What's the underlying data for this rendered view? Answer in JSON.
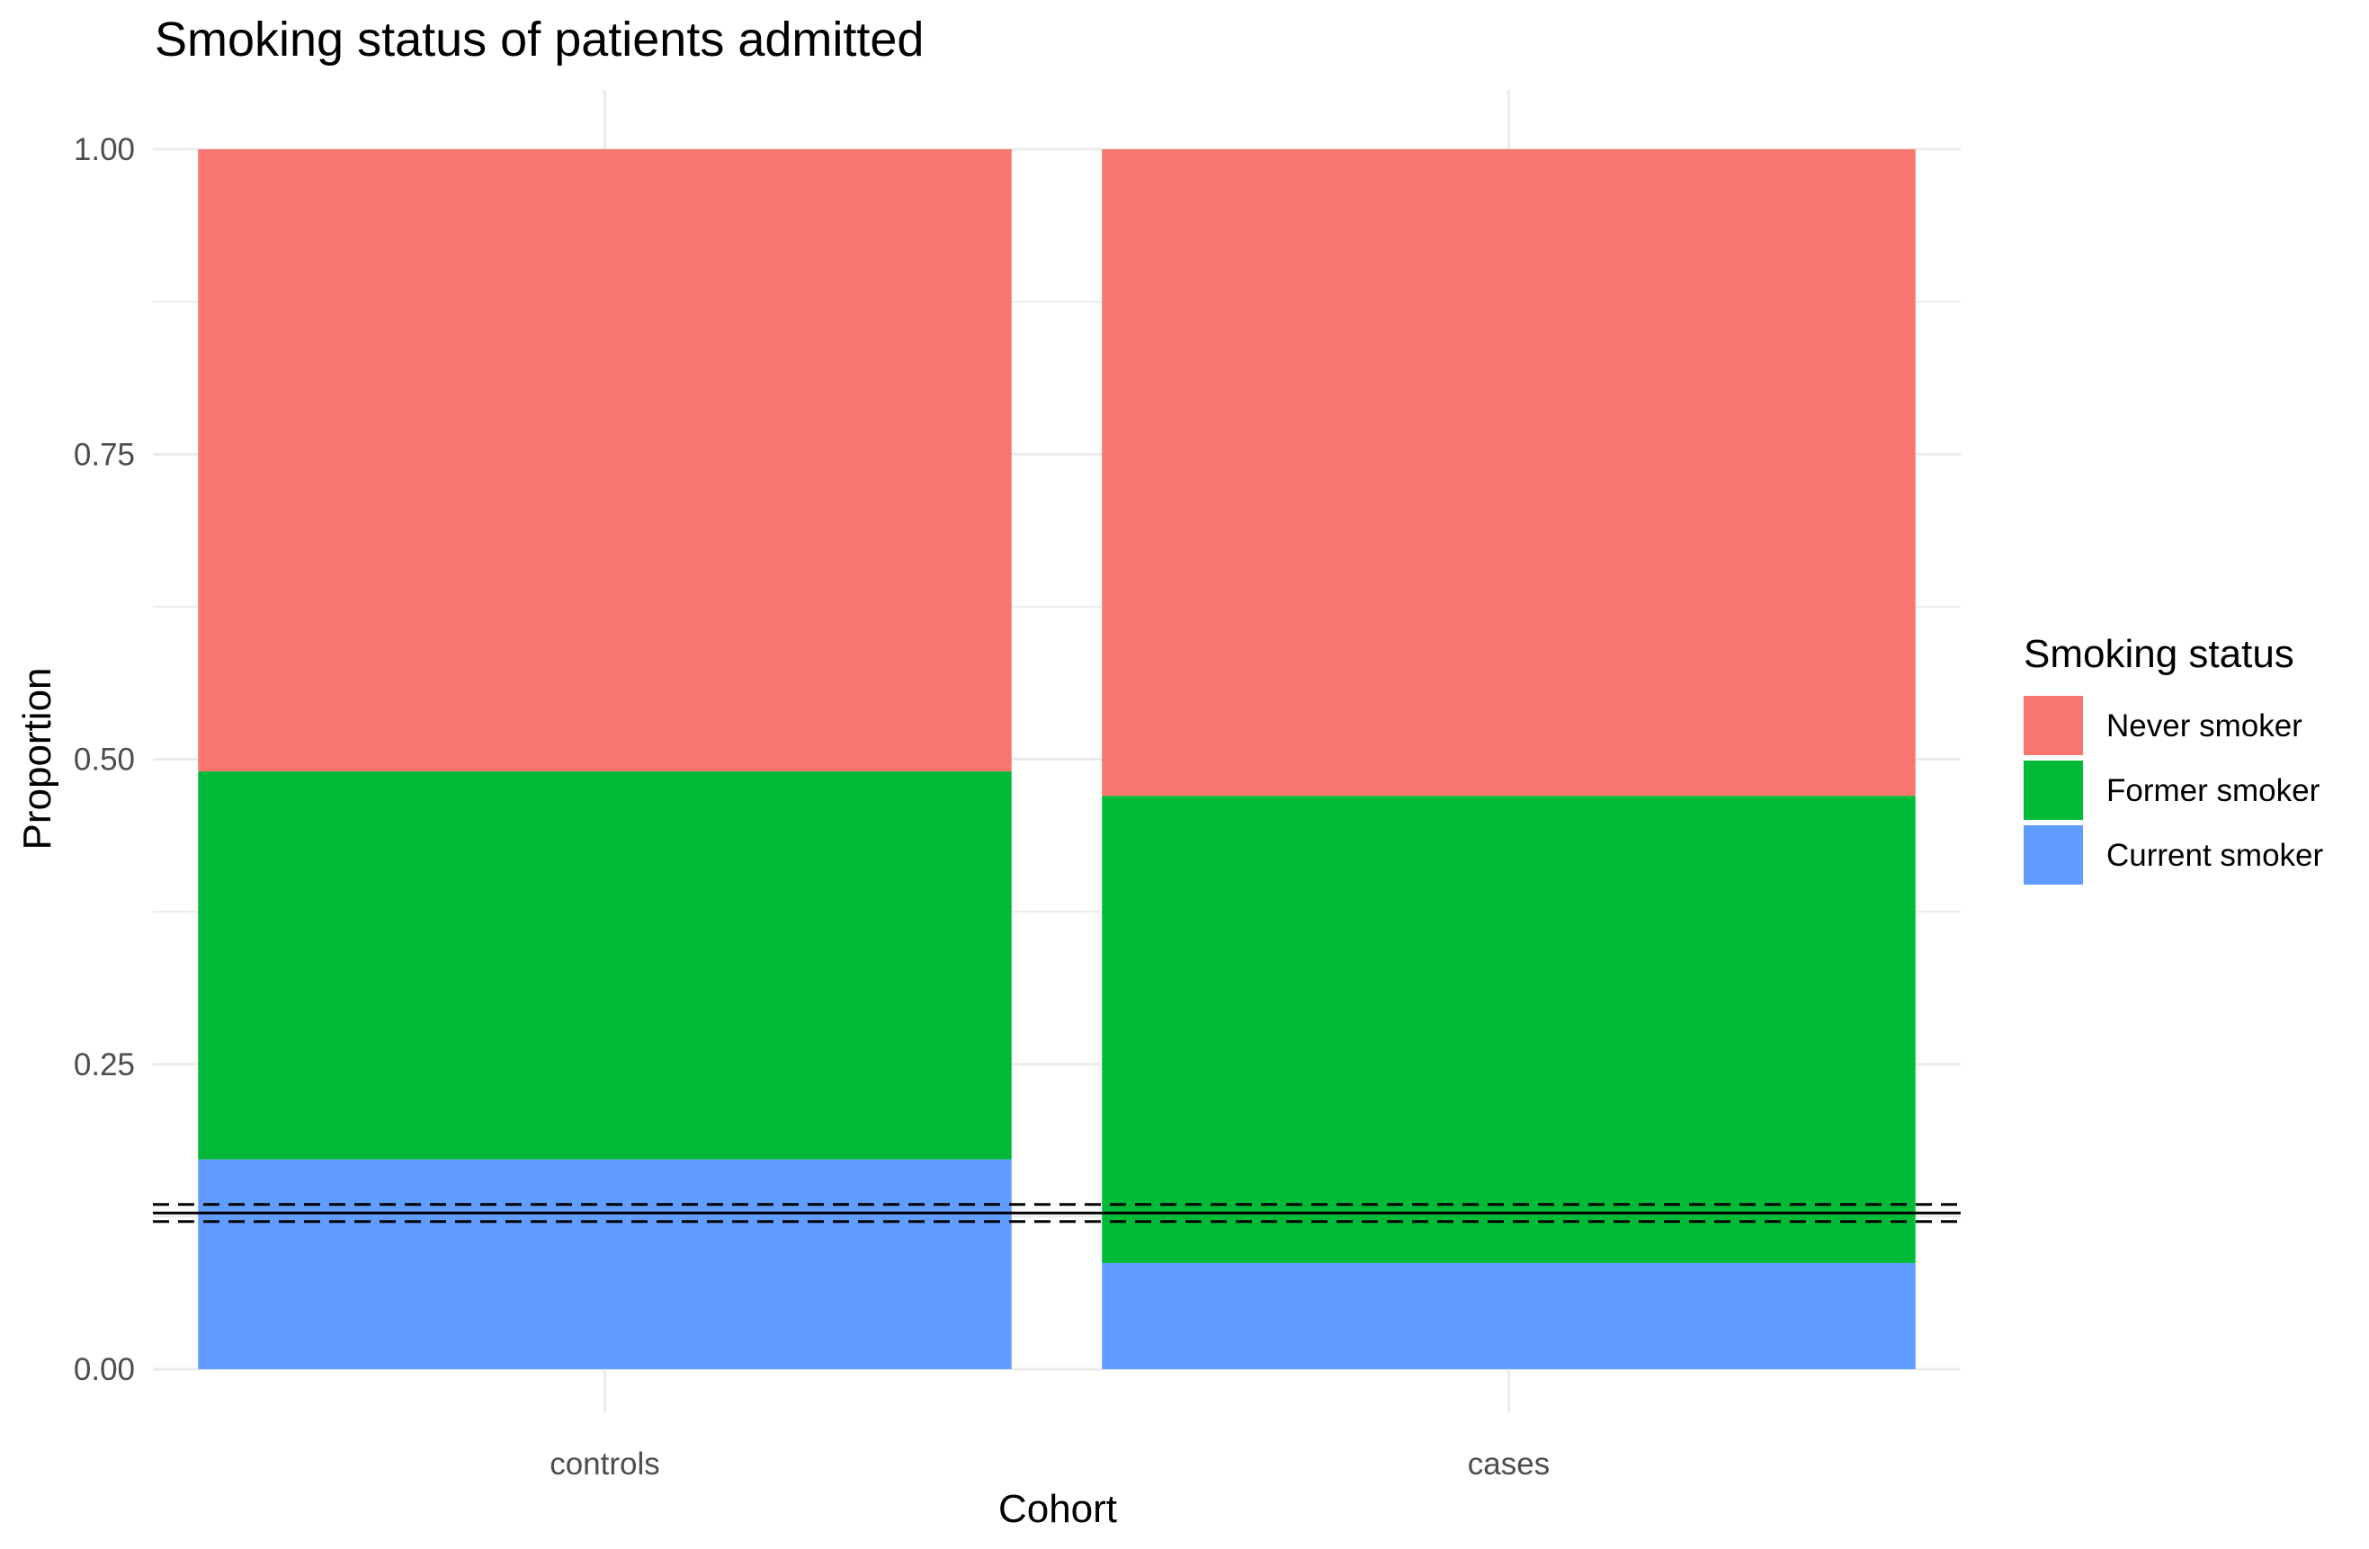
{
  "chart_data": {
    "type": "bar",
    "stacked": true,
    "title": "Smoking status of patients admitted",
    "xlabel": "Cohort",
    "ylabel": "Proportion",
    "categories": [
      "controls",
      "cases"
    ],
    "ylim": [
      0,
      1
    ],
    "yticks": [
      "0.00",
      "0.25",
      "0.50",
      "0.75",
      "1.00"
    ],
    "ytick_values": [
      0,
      0.25,
      0.5,
      0.75,
      1.0
    ],
    "grid": true,
    "legend": {
      "title": "Smoking status",
      "position": "right"
    },
    "series": [
      {
        "name": "Current smoker",
        "color": "#619CFF",
        "values": [
          0.172,
          0.087
        ]
      },
      {
        "name": "Former smoker",
        "color": "#00BA38",
        "values": [
          0.318,
          0.383
        ]
      },
      {
        "name": "Never smoker",
        "color": "#F8766D",
        "values": [
          0.51,
          0.53
        ]
      }
    ],
    "legend_order": [
      "Never smoker",
      "Former smoker",
      "Current smoker"
    ],
    "reference_lines": [
      {
        "y": 0.128,
        "style": "solid",
        "color": "#000000"
      },
      {
        "y": 0.121,
        "style": "dashed",
        "color": "#000000"
      },
      {
        "y": 0.135,
        "style": "dashed",
        "color": "#000000"
      }
    ]
  }
}
